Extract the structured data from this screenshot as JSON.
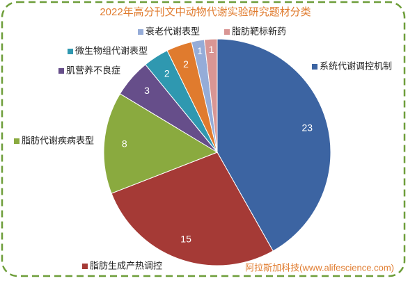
{
  "chart_data": {
    "type": "pie",
    "title": "2022年高分刊文中动物代谢实验研究题材分类",
    "categories": [
      "系统代谢调控机制",
      "脂肪生成产热调控",
      "脂肪代谢疾病表型",
      "肌营养不良症",
      "微生物组代谢表型",
      null,
      "衰老代谢表型",
      "脂肪靶标新药"
    ],
    "values": [
      23,
      15,
      8,
      3,
      2,
      2,
      1,
      1
    ],
    "colors": [
      "#3c64a2",
      "#a53a36",
      "#8aaa3f",
      "#664e8a",
      "#2f98b0",
      "#e07b2e",
      "#95acd8",
      "#d99694"
    ],
    "annotation": "阿拉斯加科技(www.alifescience.com)"
  }
}
